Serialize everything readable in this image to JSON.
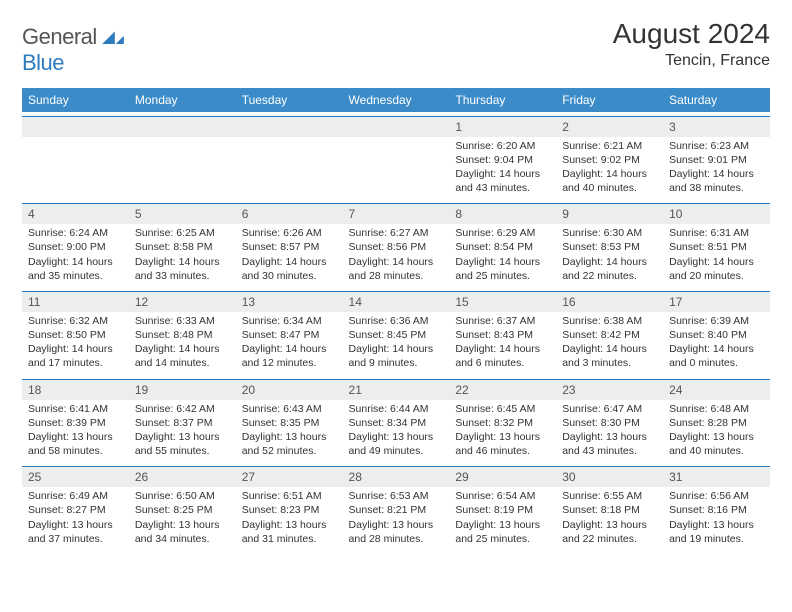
{
  "brand": {
    "general": "General",
    "blue": "Blue"
  },
  "header": {
    "title": "August 2024",
    "location": "Tencin, France"
  },
  "dow": [
    "Sunday",
    "Monday",
    "Tuesday",
    "Wednesday",
    "Thursday",
    "Friday",
    "Saturday"
  ],
  "weeks": [
    {
      "nums": [
        "",
        "",
        "",
        "",
        "1",
        "2",
        "3"
      ],
      "cells": [
        null,
        null,
        null,
        null,
        {
          "sr": "Sunrise: 6:20 AM",
          "ss": "Sunset: 9:04 PM",
          "d1": "Daylight: 14 hours",
          "d2": "and 43 minutes."
        },
        {
          "sr": "Sunrise: 6:21 AM",
          "ss": "Sunset: 9:02 PM",
          "d1": "Daylight: 14 hours",
          "d2": "and 40 minutes."
        },
        {
          "sr": "Sunrise: 6:23 AM",
          "ss": "Sunset: 9:01 PM",
          "d1": "Daylight: 14 hours",
          "d2": "and 38 minutes."
        }
      ]
    },
    {
      "nums": [
        "4",
        "5",
        "6",
        "7",
        "8",
        "9",
        "10"
      ],
      "cells": [
        {
          "sr": "Sunrise: 6:24 AM",
          "ss": "Sunset: 9:00 PM",
          "d1": "Daylight: 14 hours",
          "d2": "and 35 minutes."
        },
        {
          "sr": "Sunrise: 6:25 AM",
          "ss": "Sunset: 8:58 PM",
          "d1": "Daylight: 14 hours",
          "d2": "and 33 minutes."
        },
        {
          "sr": "Sunrise: 6:26 AM",
          "ss": "Sunset: 8:57 PM",
          "d1": "Daylight: 14 hours",
          "d2": "and 30 minutes."
        },
        {
          "sr": "Sunrise: 6:27 AM",
          "ss": "Sunset: 8:56 PM",
          "d1": "Daylight: 14 hours",
          "d2": "and 28 minutes."
        },
        {
          "sr": "Sunrise: 6:29 AM",
          "ss": "Sunset: 8:54 PM",
          "d1": "Daylight: 14 hours",
          "d2": "and 25 minutes."
        },
        {
          "sr": "Sunrise: 6:30 AM",
          "ss": "Sunset: 8:53 PM",
          "d1": "Daylight: 14 hours",
          "d2": "and 22 minutes."
        },
        {
          "sr": "Sunrise: 6:31 AM",
          "ss": "Sunset: 8:51 PM",
          "d1": "Daylight: 14 hours",
          "d2": "and 20 minutes."
        }
      ]
    },
    {
      "nums": [
        "11",
        "12",
        "13",
        "14",
        "15",
        "16",
        "17"
      ],
      "cells": [
        {
          "sr": "Sunrise: 6:32 AM",
          "ss": "Sunset: 8:50 PM",
          "d1": "Daylight: 14 hours",
          "d2": "and 17 minutes."
        },
        {
          "sr": "Sunrise: 6:33 AM",
          "ss": "Sunset: 8:48 PM",
          "d1": "Daylight: 14 hours",
          "d2": "and 14 minutes."
        },
        {
          "sr": "Sunrise: 6:34 AM",
          "ss": "Sunset: 8:47 PM",
          "d1": "Daylight: 14 hours",
          "d2": "and 12 minutes."
        },
        {
          "sr": "Sunrise: 6:36 AM",
          "ss": "Sunset: 8:45 PM",
          "d1": "Daylight: 14 hours",
          "d2": "and 9 minutes."
        },
        {
          "sr": "Sunrise: 6:37 AM",
          "ss": "Sunset: 8:43 PM",
          "d1": "Daylight: 14 hours",
          "d2": "and 6 minutes."
        },
        {
          "sr": "Sunrise: 6:38 AM",
          "ss": "Sunset: 8:42 PM",
          "d1": "Daylight: 14 hours",
          "d2": "and 3 minutes."
        },
        {
          "sr": "Sunrise: 6:39 AM",
          "ss": "Sunset: 8:40 PM",
          "d1": "Daylight: 14 hours",
          "d2": "and 0 minutes."
        }
      ]
    },
    {
      "nums": [
        "18",
        "19",
        "20",
        "21",
        "22",
        "23",
        "24"
      ],
      "cells": [
        {
          "sr": "Sunrise: 6:41 AM",
          "ss": "Sunset: 8:39 PM",
          "d1": "Daylight: 13 hours",
          "d2": "and 58 minutes."
        },
        {
          "sr": "Sunrise: 6:42 AM",
          "ss": "Sunset: 8:37 PM",
          "d1": "Daylight: 13 hours",
          "d2": "and 55 minutes."
        },
        {
          "sr": "Sunrise: 6:43 AM",
          "ss": "Sunset: 8:35 PM",
          "d1": "Daylight: 13 hours",
          "d2": "and 52 minutes."
        },
        {
          "sr": "Sunrise: 6:44 AM",
          "ss": "Sunset: 8:34 PM",
          "d1": "Daylight: 13 hours",
          "d2": "and 49 minutes."
        },
        {
          "sr": "Sunrise: 6:45 AM",
          "ss": "Sunset: 8:32 PM",
          "d1": "Daylight: 13 hours",
          "d2": "and 46 minutes."
        },
        {
          "sr": "Sunrise: 6:47 AM",
          "ss": "Sunset: 8:30 PM",
          "d1": "Daylight: 13 hours",
          "d2": "and 43 minutes."
        },
        {
          "sr": "Sunrise: 6:48 AM",
          "ss": "Sunset: 8:28 PM",
          "d1": "Daylight: 13 hours",
          "d2": "and 40 minutes."
        }
      ]
    },
    {
      "nums": [
        "25",
        "26",
        "27",
        "28",
        "29",
        "30",
        "31"
      ],
      "cells": [
        {
          "sr": "Sunrise: 6:49 AM",
          "ss": "Sunset: 8:27 PM",
          "d1": "Daylight: 13 hours",
          "d2": "and 37 minutes."
        },
        {
          "sr": "Sunrise: 6:50 AM",
          "ss": "Sunset: 8:25 PM",
          "d1": "Daylight: 13 hours",
          "d2": "and 34 minutes."
        },
        {
          "sr": "Sunrise: 6:51 AM",
          "ss": "Sunset: 8:23 PM",
          "d1": "Daylight: 13 hours",
          "d2": "and 31 minutes."
        },
        {
          "sr": "Sunrise: 6:53 AM",
          "ss": "Sunset: 8:21 PM",
          "d1": "Daylight: 13 hours",
          "d2": "and 28 minutes."
        },
        {
          "sr": "Sunrise: 6:54 AM",
          "ss": "Sunset: 8:19 PM",
          "d1": "Daylight: 13 hours",
          "d2": "and 25 minutes."
        },
        {
          "sr": "Sunrise: 6:55 AM",
          "ss": "Sunset: 8:18 PM",
          "d1": "Daylight: 13 hours",
          "d2": "and 22 minutes."
        },
        {
          "sr": "Sunrise: 6:56 AM",
          "ss": "Sunset: 8:16 PM",
          "d1": "Daylight: 13 hours",
          "d2": "and 19 minutes."
        }
      ]
    }
  ],
  "colors": {
    "header_bar": "#3b8bc9",
    "num_row_bg": "#eceeee",
    "divider": "#2f7bbf",
    "text": "#333333"
  }
}
